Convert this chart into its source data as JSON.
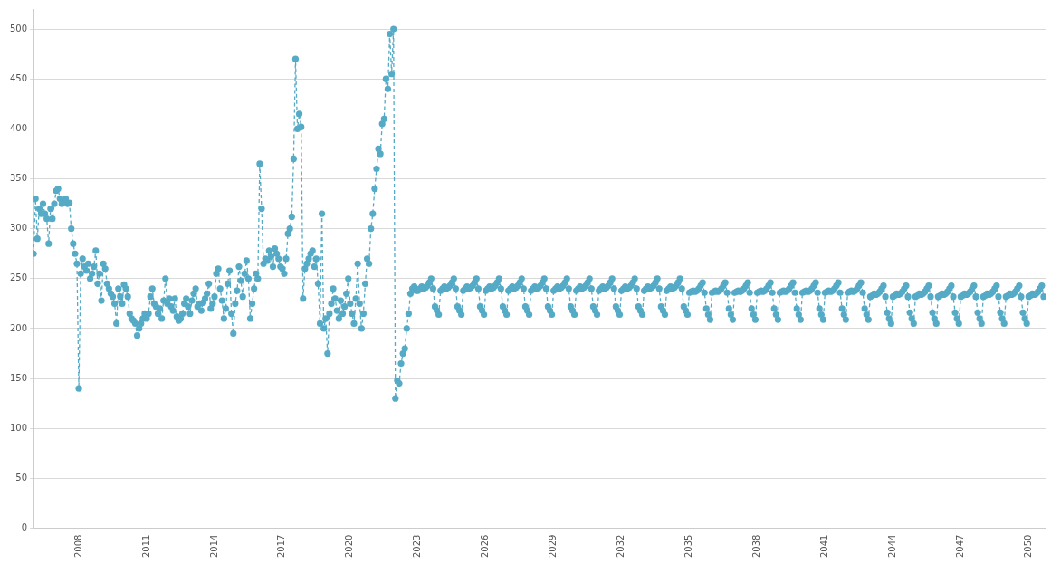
{
  "chart_data": {
    "type": "line",
    "line_style": "dashed",
    "marker": "circle",
    "grid": "y",
    "legend": false,
    "xlim": [
      "2006-01",
      "2050-10"
    ],
    "xticks": [
      {
        "value": "2008",
        "label": "2008"
      },
      {
        "value": "2011",
        "label": "2011"
      },
      {
        "value": "2014",
        "label": "2014"
      },
      {
        "value": "2017",
        "label": "2017"
      },
      {
        "value": "2020",
        "label": "2020"
      },
      {
        "value": "2023",
        "label": "2023"
      },
      {
        "value": "2026",
        "label": "2026"
      },
      {
        "value": "2029",
        "label": "2029"
      },
      {
        "value": "2032",
        "label": "2032"
      },
      {
        "value": "2035",
        "label": "2035"
      },
      {
        "value": "2038",
        "label": "2038"
      },
      {
        "value": "2041",
        "label": "2041"
      },
      {
        "value": "2044",
        "label": "2044"
      },
      {
        "value": "2047",
        "label": "2047"
      },
      {
        "value": "2050",
        "label": "2050"
      }
    ],
    "ylim": [
      0,
      520
    ],
    "yticks": [
      0,
      50,
      100,
      150,
      200,
      250,
      300,
      350,
      400,
      450,
      500
    ],
    "x": [
      "2006-01",
      "2006-02",
      "2006-03",
      "2006-04",
      "2006-05",
      "2006-06",
      "2006-07",
      "2006-08",
      "2006-09",
      "2006-10",
      "2006-11",
      "2006-12",
      "2007-01",
      "2007-02",
      "2007-03",
      "2007-04",
      "2007-05",
      "2007-06",
      "2007-07",
      "2007-08",
      "2007-09",
      "2007-10",
      "2007-11",
      "2007-12",
      "2008-01",
      "2008-02",
      "2008-03",
      "2008-04",
      "2008-05",
      "2008-06",
      "2008-07",
      "2008-08",
      "2008-09",
      "2008-10",
      "2008-11",
      "2008-12",
      "2009-01",
      "2009-02",
      "2009-03",
      "2009-04",
      "2009-05",
      "2009-06",
      "2009-07",
      "2009-08",
      "2009-09",
      "2009-10",
      "2009-11",
      "2009-12",
      "2010-01",
      "2010-02",
      "2010-03",
      "2010-04",
      "2010-05",
      "2010-06",
      "2010-07",
      "2010-08",
      "2010-09",
      "2010-10",
      "2010-11",
      "2010-12",
      "2011-01",
      "2011-02",
      "2011-03",
      "2011-04",
      "2011-05",
      "2011-06",
      "2011-07",
      "2011-08",
      "2011-09",
      "2011-10",
      "2011-11",
      "2011-12",
      "2012-01",
      "2012-02",
      "2012-03",
      "2012-04",
      "2012-05",
      "2012-06",
      "2012-07",
      "2012-08",
      "2012-09",
      "2012-10",
      "2012-11",
      "2012-12",
      "2013-01",
      "2013-02",
      "2013-03",
      "2013-04",
      "2013-05",
      "2013-06",
      "2013-07",
      "2013-08",
      "2013-09",
      "2013-10",
      "2013-11",
      "2013-12",
      "2014-01",
      "2014-02",
      "2014-03",
      "2014-04",
      "2014-05",
      "2014-06",
      "2014-07",
      "2014-08",
      "2014-09",
      "2014-10",
      "2014-11",
      "2014-12",
      "2015-01",
      "2015-02",
      "2015-03",
      "2015-04",
      "2015-05",
      "2015-06",
      "2015-07",
      "2015-08",
      "2015-09",
      "2015-10",
      "2015-11",
      "2015-12",
      "2016-01",
      "2016-02",
      "2016-03",
      "2016-04",
      "2016-05",
      "2016-06",
      "2016-07",
      "2016-08",
      "2016-09",
      "2016-10",
      "2016-11",
      "2016-12",
      "2017-01",
      "2017-02",
      "2017-03",
      "2017-04",
      "2017-05",
      "2017-06",
      "2017-07",
      "2017-08",
      "2017-09",
      "2017-10",
      "2017-11",
      "2017-12",
      "2018-01",
      "2018-02",
      "2018-03",
      "2018-04",
      "2018-05",
      "2018-06",
      "2018-07",
      "2018-08",
      "2018-09",
      "2018-10",
      "2018-11",
      "2018-12",
      "2019-01",
      "2019-02",
      "2019-03",
      "2019-04",
      "2019-05",
      "2019-06",
      "2019-07",
      "2019-08",
      "2019-09",
      "2019-10",
      "2019-11",
      "2019-12",
      "2020-01",
      "2020-02",
      "2020-03",
      "2020-04",
      "2020-05",
      "2020-06",
      "2020-07",
      "2020-08",
      "2020-09",
      "2020-10",
      "2020-11",
      "2020-12",
      "2021-01",
      "2021-02",
      "2021-03",
      "2021-04",
      "2021-05",
      "2021-06",
      "2021-07",
      "2021-08",
      "2021-09",
      "2021-10",
      "2021-11",
      "2021-12",
      "2022-01",
      "2022-02",
      "2022-03",
      "2022-04",
      "2022-05",
      "2022-06",
      "2022-07",
      "2022-08",
      "2022-09",
      "2022-10",
      "2022-11",
      "2022-12",
      "2023-01",
      "2023-02",
      "2023-03",
      "2023-04",
      "2023-05",
      "2023-06",
      "2023-07",
      "2023-08",
      "2023-09",
      "2023-10",
      "2023-11",
      "2023-12",
      "2024-01",
      "2024-02",
      "2024-03",
      "2024-04",
      "2024-05",
      "2024-06",
      "2024-07",
      "2024-08",
      "2024-09",
      "2024-10",
      "2024-11",
      "2024-12",
      "2025-01",
      "2025-02",
      "2025-03",
      "2025-04",
      "2025-05",
      "2025-06",
      "2025-07",
      "2025-08",
      "2025-09",
      "2025-10",
      "2025-11",
      "2025-12",
      "2026-01",
      "2026-02",
      "2026-03",
      "2026-04",
      "2026-05",
      "2026-06",
      "2026-07",
      "2026-08",
      "2026-09",
      "2026-10",
      "2026-11",
      "2026-12",
      "2027-01",
      "2027-02",
      "2027-03",
      "2027-04",
      "2027-05",
      "2027-06",
      "2027-07",
      "2027-08",
      "2027-09",
      "2027-10",
      "2027-11",
      "2027-12",
      "2028-01",
      "2028-02",
      "2028-03",
      "2028-04",
      "2028-05",
      "2028-06",
      "2028-07",
      "2028-08",
      "2028-09",
      "2028-10",
      "2028-11",
      "2028-12",
      "2029-01",
      "2029-02",
      "2029-03",
      "2029-04",
      "2029-05",
      "2029-06",
      "2029-07",
      "2029-08",
      "2029-09",
      "2029-10",
      "2029-11",
      "2029-12",
      "2030-01",
      "2030-02",
      "2030-03",
      "2030-04",
      "2030-05",
      "2030-06",
      "2030-07",
      "2030-08",
      "2030-09",
      "2030-10",
      "2030-11",
      "2030-12",
      "2031-01",
      "2031-02",
      "2031-03",
      "2031-04",
      "2031-05",
      "2031-06",
      "2031-07",
      "2031-08",
      "2031-09",
      "2031-10",
      "2031-11",
      "2031-12",
      "2032-01",
      "2032-02",
      "2032-03",
      "2032-04",
      "2032-05",
      "2032-06",
      "2032-07",
      "2032-08",
      "2032-09",
      "2032-10",
      "2032-11",
      "2032-12",
      "2033-01",
      "2033-02",
      "2033-03",
      "2033-04",
      "2033-05",
      "2033-06",
      "2033-07",
      "2033-08",
      "2033-09",
      "2033-10",
      "2033-11",
      "2033-12",
      "2034-01",
      "2034-02",
      "2034-03",
      "2034-04",
      "2034-05",
      "2034-06",
      "2034-07",
      "2034-08",
      "2034-09",
      "2034-10",
      "2034-11",
      "2034-12",
      "2035-01",
      "2035-02",
      "2035-03",
      "2035-04",
      "2035-05",
      "2035-06",
      "2035-07",
      "2035-08",
      "2035-09",
      "2035-10",
      "2035-11",
      "2035-12",
      "2036-01",
      "2036-02",
      "2036-03",
      "2036-04",
      "2036-05",
      "2036-06",
      "2036-07",
      "2036-08",
      "2036-09",
      "2036-10",
      "2036-11",
      "2036-12",
      "2037-01",
      "2037-02",
      "2037-03",
      "2037-04",
      "2037-05",
      "2037-06",
      "2037-07",
      "2037-08",
      "2037-09",
      "2037-10",
      "2037-11",
      "2037-12",
      "2038-01",
      "2038-02",
      "2038-03",
      "2038-04",
      "2038-05",
      "2038-06",
      "2038-07",
      "2038-08",
      "2038-09",
      "2038-10",
      "2038-11",
      "2038-12",
      "2039-01",
      "2039-02",
      "2039-03",
      "2039-04",
      "2039-05",
      "2039-06",
      "2039-07",
      "2039-08",
      "2039-09",
      "2039-10",
      "2039-11",
      "2039-12",
      "2040-01",
      "2040-02",
      "2040-03",
      "2040-04",
      "2040-05",
      "2040-06",
      "2040-07",
      "2040-08",
      "2040-09",
      "2040-10",
      "2040-11",
      "2040-12",
      "2041-01",
      "2041-02",
      "2041-03",
      "2041-04",
      "2041-05",
      "2041-06",
      "2041-07",
      "2041-08",
      "2041-09",
      "2041-10",
      "2041-11",
      "2041-12",
      "2042-01",
      "2042-02",
      "2042-03",
      "2042-04",
      "2042-05",
      "2042-06",
      "2042-07",
      "2042-08",
      "2042-09",
      "2042-10",
      "2042-11",
      "2042-12",
      "2043-01",
      "2043-02",
      "2043-03",
      "2043-04",
      "2043-05",
      "2043-06",
      "2043-07",
      "2043-08",
      "2043-09",
      "2043-10",
      "2043-11",
      "2043-12",
      "2044-01",
      "2044-02",
      "2044-03",
      "2044-04",
      "2044-05",
      "2044-06",
      "2044-07",
      "2044-08",
      "2044-09",
      "2044-10",
      "2044-11",
      "2044-12",
      "2045-01",
      "2045-02",
      "2045-03",
      "2045-04",
      "2045-05",
      "2045-06",
      "2045-07",
      "2045-08",
      "2045-09",
      "2045-10",
      "2045-11",
      "2045-12",
      "2046-01",
      "2046-02",
      "2046-03",
      "2046-04",
      "2046-05",
      "2046-06",
      "2046-07",
      "2046-08",
      "2046-09",
      "2046-10",
      "2046-11",
      "2046-12",
      "2047-01",
      "2047-02",
      "2047-03",
      "2047-04",
      "2047-05",
      "2047-06",
      "2047-07",
      "2047-08",
      "2047-09",
      "2047-10",
      "2047-11",
      "2047-12",
      "2048-01",
      "2048-02",
      "2048-03",
      "2048-04",
      "2048-05",
      "2048-06",
      "2048-07",
      "2048-08",
      "2048-09",
      "2048-10",
      "2048-11",
      "2048-12",
      "2049-01",
      "2049-02",
      "2049-03",
      "2049-04",
      "2049-05",
      "2049-06",
      "2049-07",
      "2049-08",
      "2049-09",
      "2049-10",
      "2049-11",
      "2049-12",
      "2050-01",
      "2050-02",
      "2050-03",
      "2050-04",
      "2050-05",
      "2050-06",
      "2050-07",
      "2050-08",
      "2050-09"
    ],
    "series": [
      {
        "color": "#55aac6",
        "values": [
          275,
          330,
          290,
          320,
          315,
          325,
          315,
          310,
          285,
          320,
          310,
          325,
          338,
          340,
          330,
          325,
          328,
          330,
          325,
          326,
          300,
          285,
          275,
          265,
          140,
          255,
          270,
          262,
          258,
          265,
          250,
          255,
          262,
          278,
          245,
          255,
          228,
          265,
          260,
          245,
          240,
          235,
          232,
          225,
          205,
          240,
          232,
          225,
          244,
          240,
          232,
          215,
          210,
          208,
          205,
          193,
          200,
          205,
          210,
          215,
          210,
          215,
          232,
          240,
          225,
          222,
          215,
          220,
          210,
          228,
          250,
          225,
          230,
          222,
          218,
          230,
          212,
          208,
          210,
          215,
          225,
          230,
          222,
          215,
          228,
          235,
          240,
          222,
          225,
          218,
          226,
          230,
          235,
          245,
          220,
          225,
          232,
          255,
          260,
          240,
          228,
          210,
          220,
          245,
          258,
          215,
          195,
          225,
          238,
          262,
          248,
          232,
          255,
          268,
          250,
          210,
          225,
          240,
          255,
          250,
          365,
          320,
          265,
          270,
          268,
          278,
          272,
          262,
          280,
          275,
          270,
          262,
          260,
          255,
          270,
          295,
          300,
          312,
          370,
          470,
          400,
          415,
          402,
          230,
          260,
          265,
          270,
          275,
          278,
          262,
          270,
          245,
          205,
          315,
          200,
          210,
          175,
          215,
          225,
          240,
          230,
          218,
          210,
          228,
          215,
          222,
          235,
          250,
          225,
          215,
          205,
          230,
          265,
          225,
          200,
          215,
          245,
          270,
          265,
          300,
          315,
          340,
          360,
          380,
          375,
          405,
          410,
          450,
          440,
          495,
          455,
          500,
          130,
          148,
          145,
          165,
          175,
          180,
          200,
          215,
          235,
          240,
          242,
          238,
          238,
          240,
          242,
          240,
          241,
          243,
          246,
          250,
          240,
          222,
          218,
          214,
          238,
          240,
          242,
          240,
          241,
          243,
          246,
          250,
          240,
          222,
          218,
          214,
          238,
          240,
          242,
          240,
          241,
          243,
          246,
          250,
          240,
          222,
          218,
          214,
          238,
          240,
          242,
          240,
          241,
          243,
          246,
          250,
          240,
          222,
          218,
          214,
          238,
          240,
          242,
          240,
          241,
          243,
          246,
          250,
          240,
          222,
          218,
          214,
          238,
          240,
          242,
          240,
          241,
          243,
          246,
          250,
          240,
          222,
          218,
          214,
          238,
          240,
          242,
          240,
          241,
          243,
          246,
          250,
          240,
          222,
          218,
          214,
          238,
          240,
          242,
          240,
          241,
          243,
          246,
          250,
          240,
          222,
          218,
          214,
          238,
          240,
          242,
          240,
          241,
          243,
          246,
          250,
          240,
          222,
          218,
          214,
          238,
          240,
          242,
          240,
          241,
          243,
          246,
          250,
          240,
          222,
          218,
          214,
          238,
          240,
          242,
          240,
          241,
          243,
          246,
          250,
          240,
          222,
          218,
          214,
          238,
          240,
          242,
          240,
          241,
          243,
          246,
          250,
          240,
          222,
          218,
          214,
          236,
          237,
          238,
          237,
          238,
          240,
          243,
          246,
          236,
          220,
          214,
          209,
          236,
          237,
          238,
          237,
          238,
          240,
          243,
          246,
          236,
          220,
          214,
          209,
          236,
          237,
          238,
          237,
          238,
          240,
          243,
          246,
          236,
          220,
          214,
          209,
          236,
          237,
          238,
          237,
          238,
          240,
          243,
          246,
          236,
          220,
          214,
          209,
          236,
          237,
          238,
          237,
          238,
          240,
          243,
          246,
          236,
          220,
          214,
          209,
          236,
          237,
          238,
          237,
          238,
          240,
          243,
          246,
          236,
          220,
          214,
          209,
          236,
          237,
          238,
          237,
          238,
          240,
          243,
          246,
          236,
          220,
          214,
          209,
          236,
          237,
          238,
          237,
          238,
          240,
          243,
          246,
          236,
          220,
          214,
          209,
          232,
          233,
          235,
          234,
          235,
          237,
          240,
          243,
          232,
          216,
          210,
          205,
          232,
          233,
          235,
          234,
          235,
          237,
          240,
          243,
          232,
          216,
          210,
          205,
          232,
          233,
          235,
          234,
          235,
          237,
          240,
          243,
          232,
          216,
          210,
          205,
          232,
          233,
          235,
          234,
          235,
          237,
          240,
          243,
          232,
          216,
          210,
          205,
          232,
          233,
          235,
          234,
          235,
          237,
          240,
          243,
          232,
          216,
          210,
          205,
          232,
          233,
          235,
          234,
          235,
          237,
          240,
          243,
          232,
          216,
          210,
          205,
          232,
          233,
          235,
          234,
          235,
          237,
          240,
          243,
          232,
          216,
          210,
          205,
          232,
          233,
          235,
          234,
          235,
          237,
          240,
          243,
          232
        ]
      }
    ]
  }
}
